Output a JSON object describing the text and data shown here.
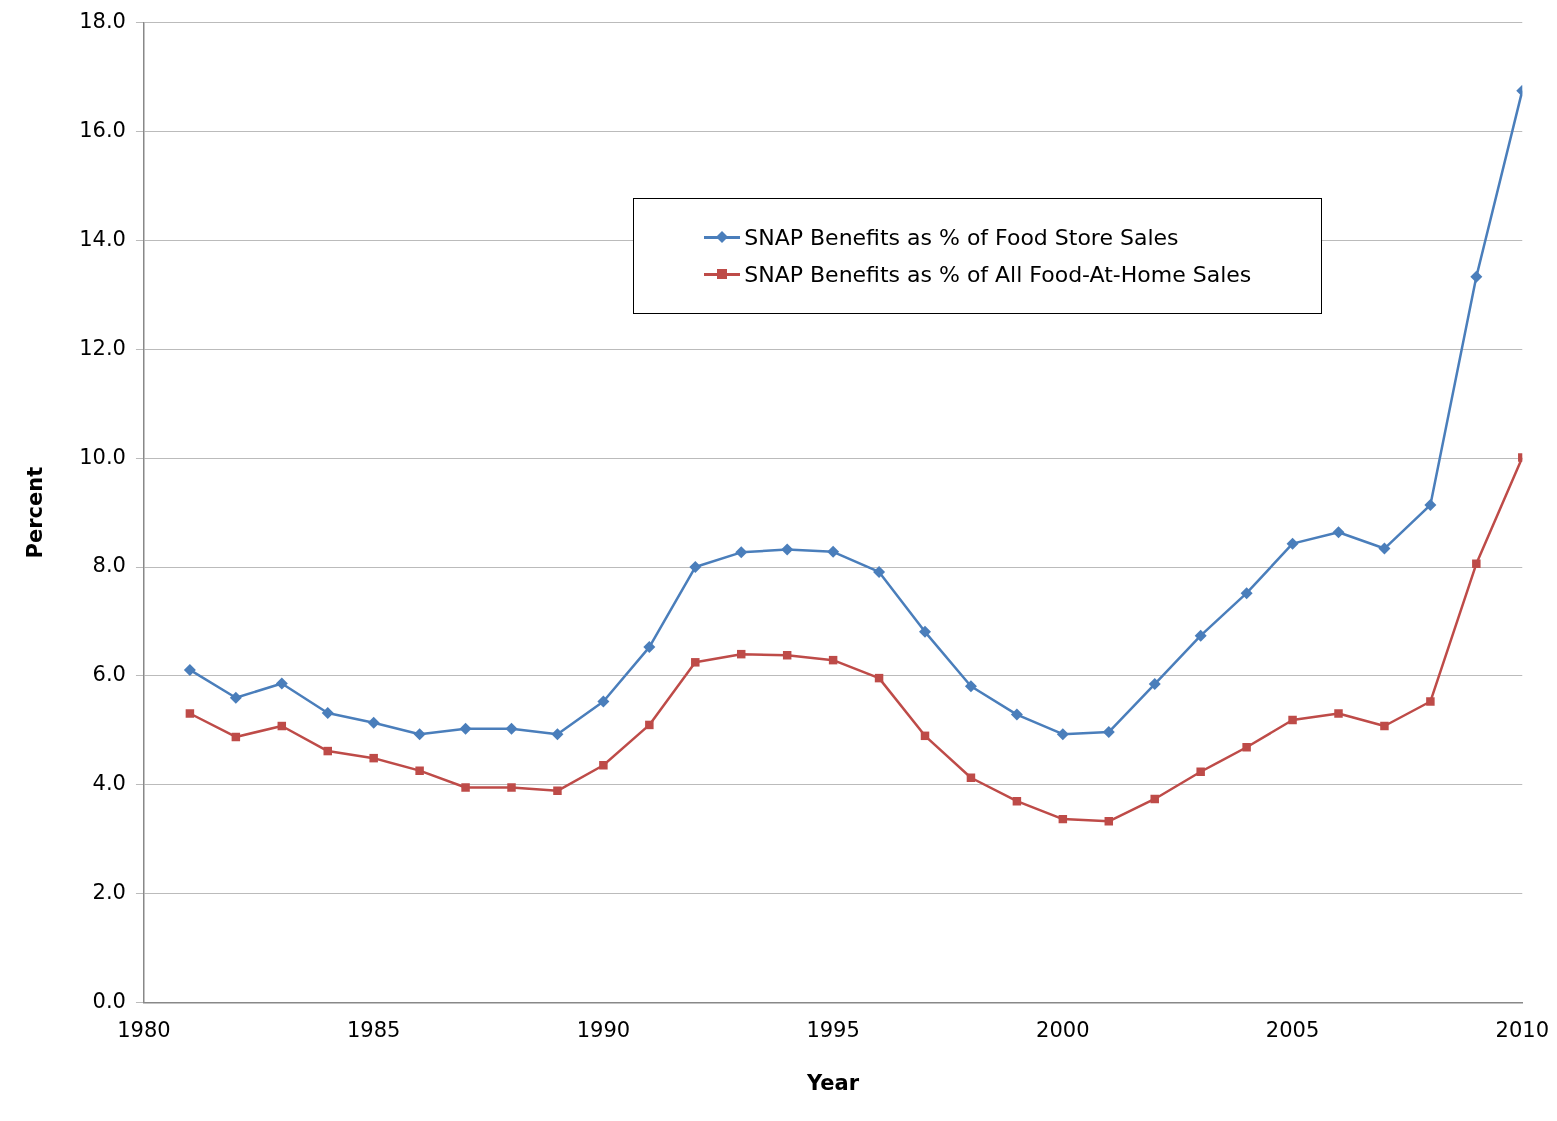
{
  "chart_data": {
    "type": "line",
    "xlabel": "Year",
    "ylabel": "Percent",
    "x": [
      1981,
      1982,
      1983,
      1984,
      1985,
      1986,
      1987,
      1988,
      1989,
      1990,
      1991,
      1992,
      1993,
      1994,
      1995,
      1996,
      1997,
      1998,
      1999,
      2000,
      2001,
      2002,
      2003,
      2004,
      2005,
      2006,
      2007,
      2008,
      2009,
      2010
    ],
    "series": [
      {
        "name": "SNAP Benefits as % of Food Store Sales",
        "color": "#4a7ebb",
        "marker": "diamond",
        "values": [
          6.11,
          5.6,
          5.86,
          5.32,
          5.14,
          4.93,
          5.03,
          5.03,
          4.93,
          5.53,
          6.53,
          8.0,
          8.27,
          8.32,
          8.28,
          7.91,
          6.81,
          5.81,
          5.29,
          4.93,
          4.97,
          5.85,
          6.74,
          7.52,
          8.43,
          8.64,
          8.34,
          9.14,
          13.33,
          16.75
        ]
      },
      {
        "name": "SNAP Benefits as % of All Food-At-Home Sales",
        "color": "#be4b48",
        "marker": "square",
        "values": [
          5.31,
          4.88,
          5.08,
          4.62,
          4.49,
          4.26,
          3.95,
          3.95,
          3.89,
          4.36,
          5.1,
          6.25,
          6.4,
          6.38,
          6.29,
          5.96,
          4.9,
          4.13,
          3.7,
          3.37,
          3.33,
          3.74,
          4.24,
          4.69,
          5.19,
          5.31,
          5.08,
          5.53,
          8.06,
          10.01
        ]
      }
    ],
    "xlim": [
      1980,
      2010
    ],
    "xticks": [
      1980,
      1985,
      1990,
      1995,
      2000,
      2005,
      2010
    ],
    "ylim": [
      0,
      18
    ],
    "yticks": [
      {
        "value": 0,
        "label": "0.0"
      },
      {
        "value": 2,
        "label": "2.0"
      },
      {
        "value": 4,
        "label": "4.0"
      },
      {
        "value": 6,
        "label": "6.0"
      },
      {
        "value": 8,
        "label": "8.0"
      },
      {
        "value": 10,
        "label": "10.0"
      },
      {
        "value": 12,
        "label": "12.0"
      },
      {
        "value": 14,
        "label": "14.0"
      },
      {
        "value": 16,
        "label": "16.0"
      },
      {
        "value": 18,
        "label": "18.0"
      }
    ],
    "grid": "y",
    "legend": "top right",
    "line_style": "solid"
  }
}
